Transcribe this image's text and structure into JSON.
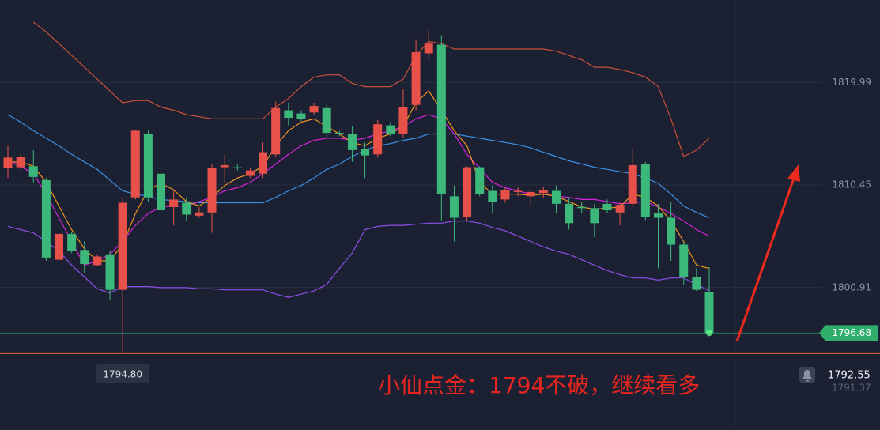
{
  "chart_data": {
    "type": "candlestick",
    "ylim": [
      1787.66,
      1827.66
    ],
    "yticks": [
      1800.91,
      1810.45,
      1819.99
    ],
    "grid": true,
    "up_color": "#e8514a",
    "down_color": "#3cb87a",
    "open": [
      1812.0,
      1812.1,
      1812.2,
      1810.9,
      1803.5,
      1805.9,
      1804.4,
      1803.0,
      1804.0,
      1800.7,
      1809.3,
      1815.2,
      1811.5,
      1808.4,
      1808.8,
      1807.6,
      1807.9,
      1812.1,
      1812.1,
      1811.3,
      1811.5,
      1813.3,
      1817.4,
      1817.1,
      1817.2,
      1817.6,
      1815.3,
      1815.2,
      1813.8,
      1813.3,
      1816.0,
      1815.2,
      1817.9,
      1822.7,
      1823.5,
      1809.4,
      1807.5,
      1812.1,
      1809.9,
      1809.1,
      1809.8,
      1809.4,
      1809.7,
      1809.9,
      1808.7,
      1808.4,
      1808.3,
      1808.7,
      1807.9,
      1808.7,
      1812.4,
      1807.8,
      1807.4,
      1804.9,
      1801.9,
      1800.5
    ],
    "high": [
      1814.1,
      1813.3,
      1813.7,
      1811.1,
      1807.4,
      1806.1,
      1805.2,
      1804.0,
      1804.3,
      1809.3,
      1815.6,
      1815.5,
      1812.2,
      1810.0,
      1809.3,
      1808.4,
      1812.4,
      1813.3,
      1812.4,
      1812.0,
      1814.4,
      1818.2,
      1818.1,
      1817.4,
      1818.1,
      1818.0,
      1815.5,
      1815.9,
      1814.4,
      1816.5,
      1816.3,
      1819.4,
      1824.0,
      1824.9,
      1824.4,
      1810.4,
      1812.2,
      1812.2,
      1810.4,
      1810.2,
      1810.3,
      1810.0,
      1810.3,
      1810.4,
      1809.3,
      1808.9,
      1808.7,
      1809.1,
      1808.9,
      1813.8,
      1812.6,
      1808.7,
      1808.9,
      1805.2,
      1802.7,
      1802.8
    ],
    "low": [
      1811.1,
      1811.9,
      1810.7,
      1803.4,
      1803.2,
      1804.1,
      1802.3,
      1802.9,
      1799.7,
      1794.8,
      1809.1,
      1808.9,
      1806.3,
      1806.7,
      1807.1,
      1807.4,
      1806.0,
      1810.7,
      1811.8,
      1811.1,
      1811.1,
      1813.1,
      1816.0,
      1816.4,
      1817.0,
      1814.9,
      1815.0,
      1812.6,
      1811.1,
      1813.0,
      1815.0,
      1814.8,
      1817.4,
      1822.1,
      1807.1,
      1805.2,
      1807.1,
      1809.4,
      1807.8,
      1808.8,
      1809.4,
      1808.5,
      1809.3,
      1807.8,
      1806.3,
      1807.8,
      1805.6,
      1807.8,
      1806.7,
      1808.4,
      1807.2,
      1802.7,
      1803.4,
      1801.2,
      1800.6,
      1796.4
    ],
    "close": [
      1813.0,
      1813.1,
      1811.2,
      1803.7,
      1805.9,
      1804.3,
      1803.1,
      1803.8,
      1800.7,
      1808.8,
      1815.5,
      1809.3,
      1808.1,
      1809.1,
      1807.7,
      1807.9,
      1812.0,
      1812.3,
      1812.0,
      1811.8,
      1813.5,
      1817.6,
      1816.7,
      1816.6,
      1817.8,
      1815.3,
      1815.2,
      1813.7,
      1813.2,
      1816.1,
      1815.2,
      1817.7,
      1822.8,
      1823.6,
      1809.6,
      1807.4,
      1812.1,
      1809.6,
      1808.9,
      1810.0,
      1809.9,
      1809.8,
      1810.0,
      1808.7,
      1806.9,
      1808.3,
      1806.9,
      1808.1,
      1808.6,
      1812.3,
      1807.5,
      1807.4,
      1804.9,
      1801.9,
      1800.7,
      1796.68
    ],
    "lines": [
      {
        "color": "#c9503a",
        "values": [
          null,
          null,
          1825.6,
          1824.7,
          1823.6,
          1822.5,
          1821.4,
          1820.3,
          1819.2,
          1818.1,
          1818.3,
          1818.3,
          1817.7,
          1817.4,
          1817.0,
          1816.8,
          1816.6,
          1816.6,
          1816.6,
          1816.6,
          1816.6,
          1817.7,
          1818.5,
          1819.6,
          1820.5,
          1820.7,
          1820.7,
          1819.9,
          1819.6,
          1819.6,
          1819.6,
          1820.3,
          1822.5,
          1823.8,
          1823.6,
          1823.1,
          1823.1,
          1823.1,
          1823.1,
          1823.1,
          1823.1,
          1823.1,
          1823.1,
          1822.9,
          1822.5,
          1822.1,
          1821.4,
          1821.4,
          1821.2,
          1820.9,
          1820.5,
          1819.6,
          1816.6,
          1813.1,
          1813.7,
          1814.8
        ]
      },
      {
        "color": "#3a8fe6",
        "values": [
          1817.0,
          1816.3,
          1815.5,
          1814.8,
          1814.1,
          1813.3,
          1812.6,
          1811.9,
          1810.9,
          1809.9,
          1809.6,
          1809.4,
          1809.1,
          1809.0,
          1808.9,
          1808.8,
          1808.8,
          1808.8,
          1808.8,
          1808.8,
          1808.8,
          1809.3,
          1809.9,
          1810.4,
          1811.1,
          1811.9,
          1812.4,
          1813.1,
          1813.7,
          1814.1,
          1814.3,
          1814.6,
          1814.8,
          1815.2,
          1815.2,
          1815.2,
          1815.0,
          1814.8,
          1814.6,
          1814.4,
          1814.2,
          1813.9,
          1813.5,
          1813.1,
          1812.7,
          1812.4,
          1812.1,
          1811.9,
          1811.7,
          1811.5,
          1811.1,
          1810.6,
          1809.6,
          1808.5,
          1807.9,
          1807.4
        ]
      },
      {
        "color": "#8b4fe6",
        "values": [
          1806.6,
          1806.3,
          1806.0,
          1805.2,
          1804.3,
          1803.0,
          1801.9,
          1800.8,
          1800.4,
          1801.0,
          1801.0,
          1801.0,
          1800.9,
          1800.9,
          1800.9,
          1800.8,
          1800.8,
          1800.7,
          1800.7,
          1800.7,
          1800.7,
          1800.3,
          1800.0,
          1800.3,
          1800.6,
          1801.2,
          1802.7,
          1804.1,
          1806.3,
          1806.6,
          1806.7,
          1806.7,
          1806.8,
          1806.9,
          1806.9,
          1807.1,
          1807.1,
          1806.9,
          1806.5,
          1806.2,
          1805.7,
          1805.2,
          1804.7,
          1804.3,
          1804.0,
          1803.5,
          1803.0,
          1802.5,
          1802.1,
          1801.8,
          1801.8,
          1801.6,
          1801.8,
          1801.8,
          1801.2,
          1800.6
        ]
      },
      {
        "color": "#d423d8",
        "values": [
          1812.8,
          1812.2,
          1811.5,
          1809.6,
          1807.4,
          1805.2,
          1803.0,
          1803.4,
          1804.0,
          1805.2,
          1806.7,
          1807.8,
          1808.4,
          1808.5,
          1808.5,
          1808.9,
          1809.3,
          1809.9,
          1810.2,
          1810.7,
          1811.5,
          1812.4,
          1813.3,
          1814.1,
          1814.6,
          1814.8,
          1814.8,
          1814.6,
          1814.8,
          1815.2,
          1815.5,
          1815.9,
          1816.6,
          1817.0,
          1816.6,
          1815.2,
          1813.3,
          1812.0,
          1810.7,
          1810.2,
          1809.9,
          1809.6,
          1809.6,
          1809.4,
          1809.3,
          1809.1,
          1809.1,
          1808.9,
          1808.7,
          1808.8,
          1808.9,
          1808.4,
          1807.8,
          1807.1,
          1806.3,
          1805.7
        ]
      },
      {
        "color": "#f0921f",
        "values": [
          1812.6,
          1812.6,
          1812.2,
          1810.7,
          1808.5,
          1806.3,
          1804.5,
          1803.4,
          1803.4,
          1804.9,
          1807.8,
          1810.0,
          1810.6,
          1810.0,
          1808.9,
          1808.5,
          1809.3,
          1810.4,
          1811.1,
          1811.5,
          1812.2,
          1814.1,
          1815.5,
          1816.3,
          1816.6,
          1815.9,
          1815.2,
          1814.4,
          1814.1,
          1814.8,
          1815.2,
          1815.9,
          1818.1,
          1819.2,
          1817.4,
          1815.5,
          1814.1,
          1810.7,
          1809.6,
          1809.6,
          1809.6,
          1809.5,
          1809.6,
          1809.4,
          1808.9,
          1808.4,
          1808.2,
          1808.3,
          1808.4,
          1809.6,
          1809.3,
          1808.5,
          1807.1,
          1805.2,
          1803.0,
          1802.7
        ]
      }
    ],
    "low_label": {
      "value": 1794.8,
      "label": "1794.80"
    },
    "support_color": "#e0613a",
    "last_price": 1796.68,
    "last_price_color": "#2fae6c",
    "alert_price": 1792.55,
    "bid_price": 1791.37,
    "annotation": "小仙点金：1794不破，继续看多"
  }
}
